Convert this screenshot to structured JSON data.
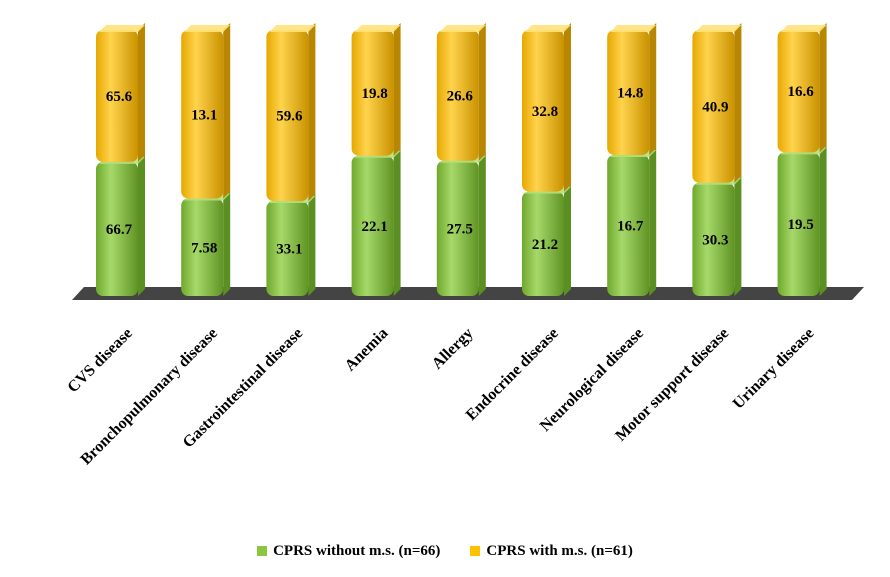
{
  "chart_data": {
    "type": "bar",
    "stacked": true,
    "style": "3d-normalized",
    "categories": [
      "CVS disease",
      "Bronchopulmonary disease",
      "Gastrointestinal disease",
      "Anemia",
      "Allergy",
      "Endocrine disease",
      "Neurological disease",
      "Motor support disease",
      "Urinary disease"
    ],
    "series": [
      {
        "name": "CPRS without m.s. (n=66)",
        "values": [
          66.7,
          7.58,
          33.1,
          22.1,
          27.5,
          21.2,
          16.7,
          30.3,
          19.5
        ],
        "color": "#8cc63e"
      },
      {
        "name": "CPRS with m.s. (n=61)",
        "values": [
          65.6,
          13.1,
          59.6,
          19.8,
          26.6,
          32.8,
          14.8,
          40.9,
          16.6
        ],
        "color": "#ffc000"
      }
    ],
    "legend_position": "bottom",
    "grid": false
  }
}
